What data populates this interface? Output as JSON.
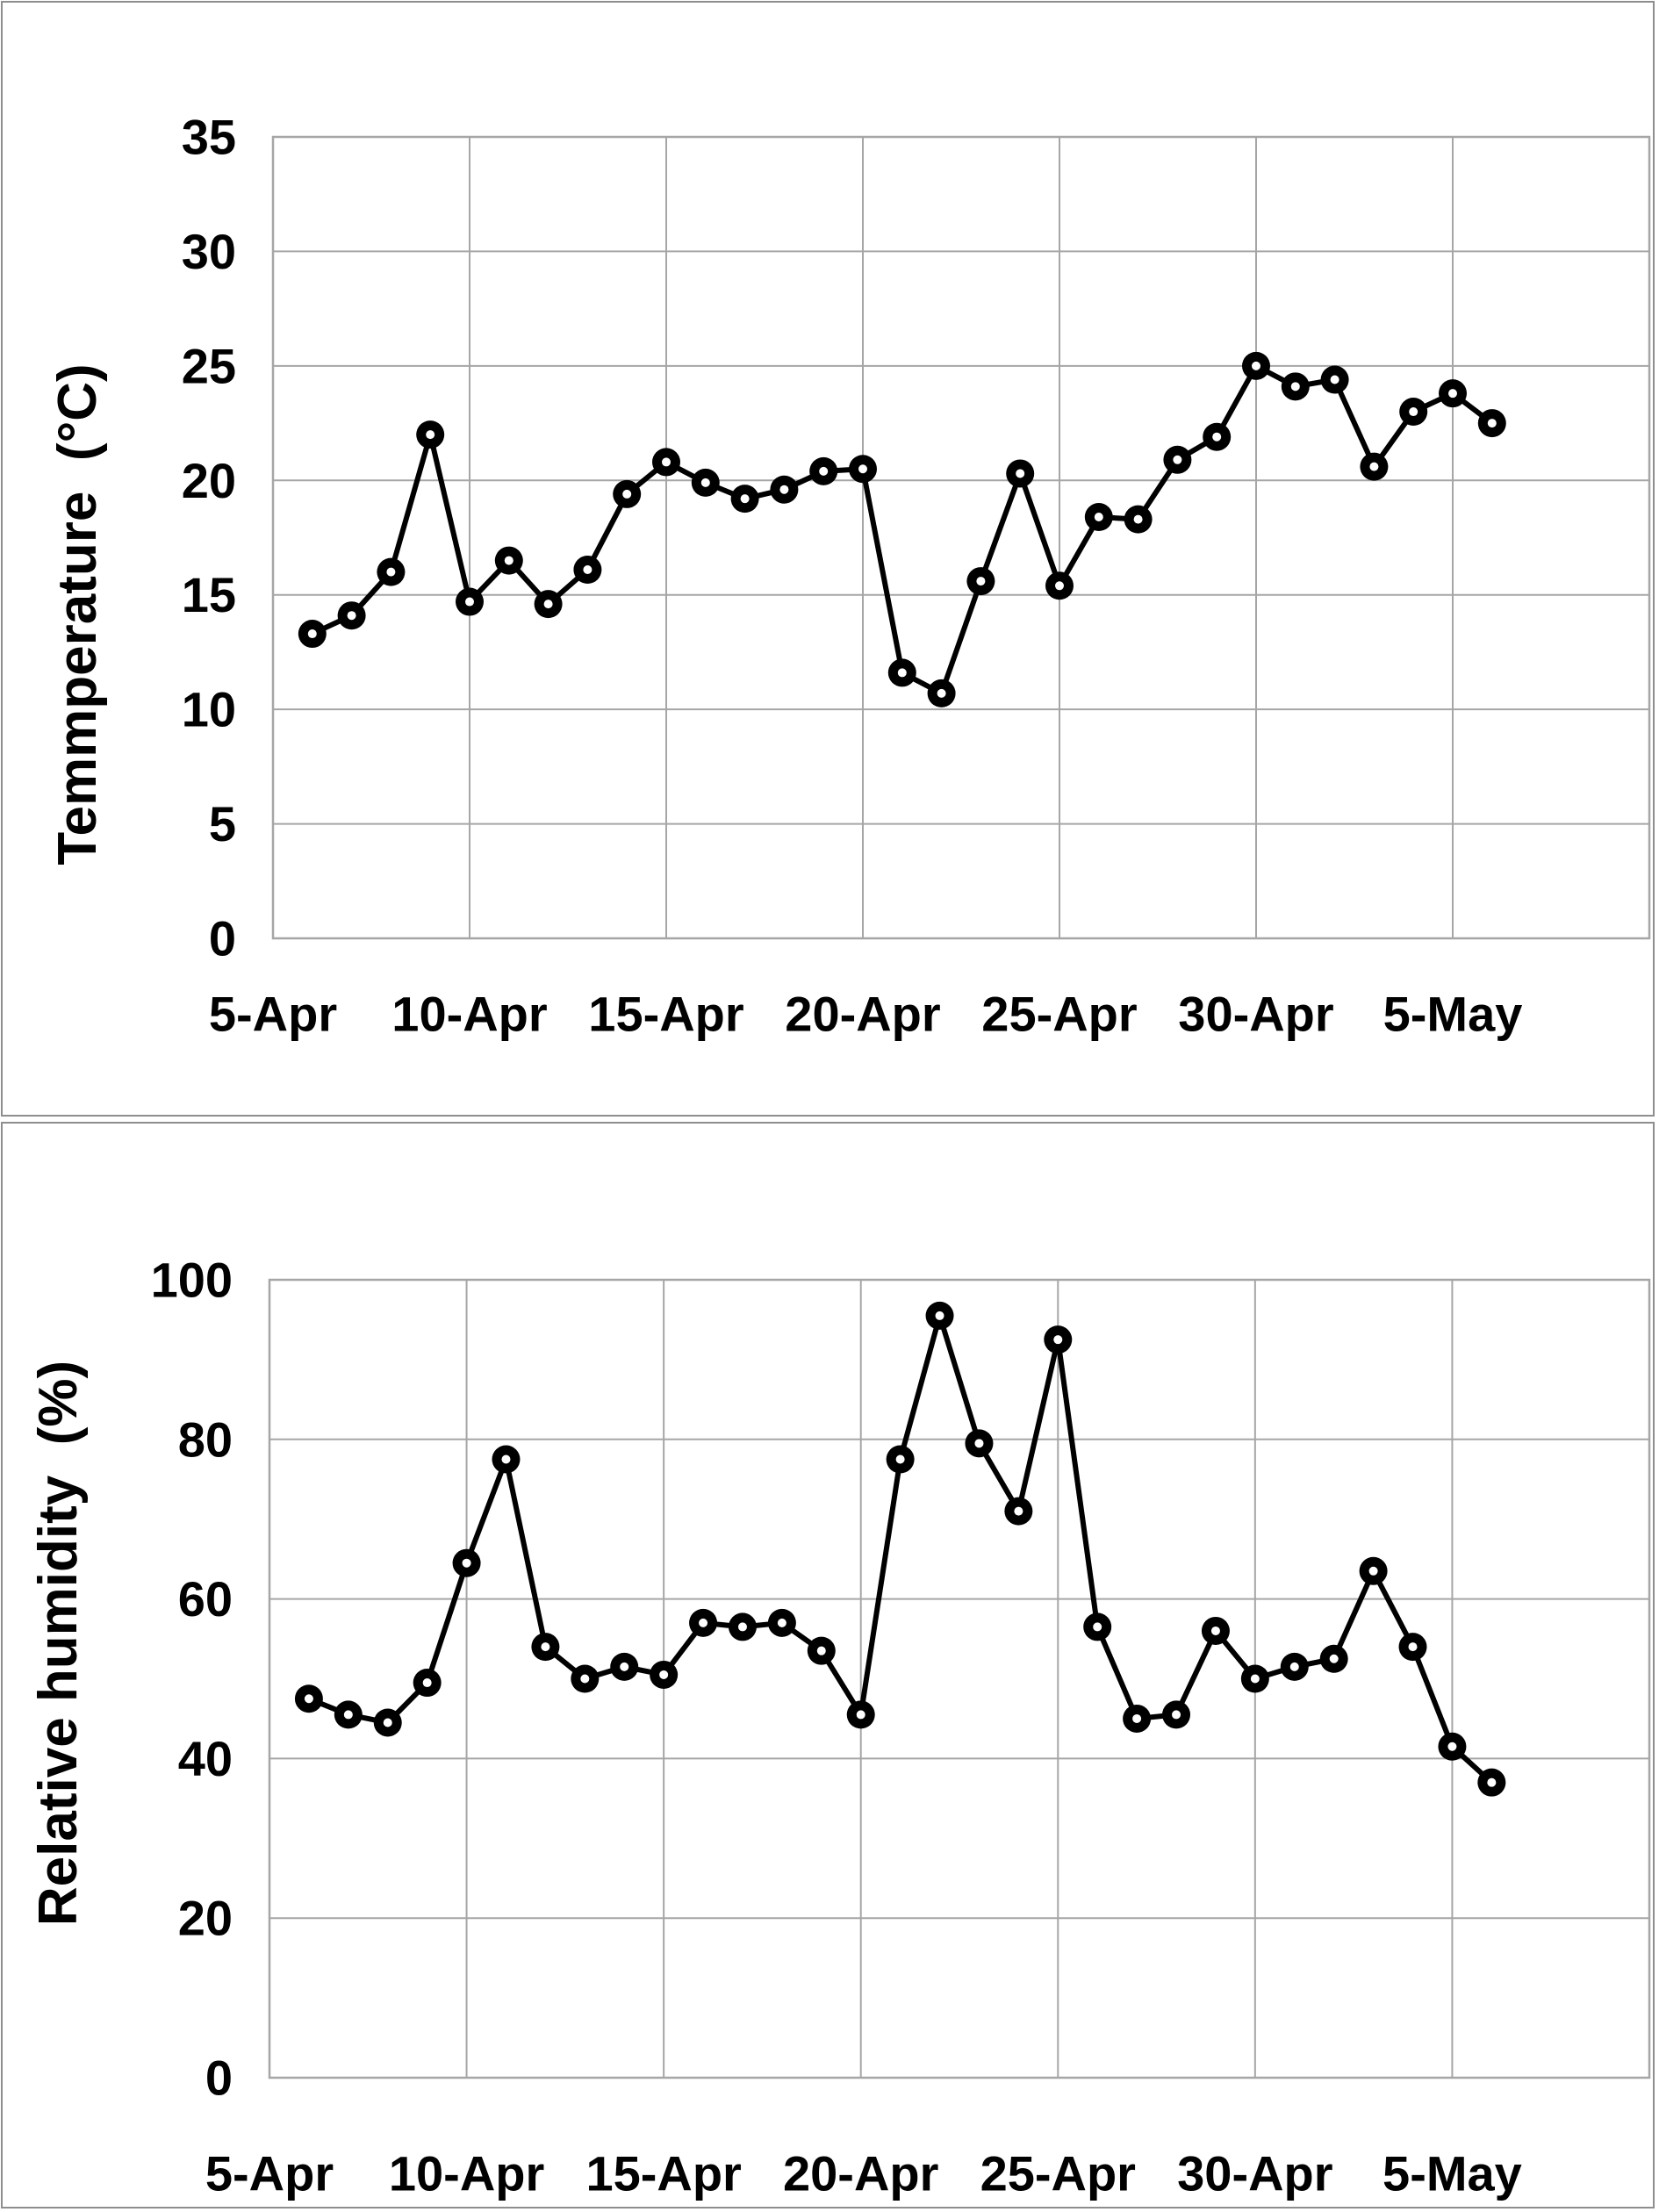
{
  "page": {
    "background_color": "#ffffff",
    "panel_border_color": "#8e8e8e",
    "description_top_panel": "temperature line chart",
    "description_bottom_panel": "relative humidity line chart"
  },
  "chart_data": [
    {
      "type": "line",
      "title": "",
      "xlabel": "",
      "ylabel": "Temmperature  (°C)",
      "legend": "none",
      "grid": true,
      "grid_color": "#a6a6a6",
      "line_color": "#000000",
      "marker": "open-circle",
      "ylim": [
        0,
        35
      ],
      "y_ticks": [
        0,
        5,
        10,
        15,
        20,
        25,
        30,
        35
      ],
      "x_tick_labels": [
        "5-Apr",
        "10-Apr",
        "15-Apr",
        "20-Apr",
        "25-Apr",
        "30-Apr",
        "5-May"
      ],
      "x_tick_days": [
        0,
        5,
        10,
        15,
        20,
        25,
        30
      ],
      "x_domain_days": [
        0,
        35
      ],
      "series": [
        {
          "name": "Temperature (°C)",
          "dates": [
            "6-Apr",
            "7-Apr",
            "8-Apr",
            "9-Apr",
            "10-Apr",
            "11-Apr",
            "12-Apr",
            "13-Apr",
            "14-Apr",
            "15-Apr",
            "16-Apr",
            "17-Apr",
            "18-Apr",
            "19-Apr",
            "20-Apr",
            "21-Apr",
            "22-Apr",
            "23-Apr",
            "24-Apr",
            "25-Apr",
            "26-Apr",
            "27-Apr",
            "28-Apr",
            "29-Apr",
            "30-Apr",
            "1-May",
            "2-May",
            "3-May",
            "4-May",
            "5-May",
            "6-May"
          ],
          "x_days": [
            1,
            2,
            3,
            4,
            5,
            6,
            7,
            8,
            9,
            10,
            11,
            12,
            13,
            14,
            15,
            16,
            17,
            18,
            19,
            20,
            21,
            22,
            23,
            24,
            25,
            26,
            27,
            28,
            29,
            30,
            31
          ],
          "values": [
            13.3,
            14.1,
            16.0,
            22.0,
            14.7,
            16.5,
            14.6,
            16.1,
            19.4,
            20.8,
            19.9,
            19.2,
            19.6,
            20.4,
            20.5,
            11.6,
            10.7,
            15.6,
            20.3,
            15.4,
            18.4,
            18.3,
            20.9,
            21.9,
            25.0,
            24.1,
            24.4,
            20.6,
            23.0,
            23.8,
            22.5
          ]
        }
      ]
    },
    {
      "type": "line",
      "title": "",
      "xlabel": "",
      "ylabel": "Relative humidity  (%)",
      "legend": "none",
      "grid": true,
      "grid_color": "#a6a6a6",
      "line_color": "#000000",
      "marker": "open-circle",
      "ylim": [
        0,
        100
      ],
      "y_ticks": [
        0,
        20,
        40,
        60,
        80,
        100
      ],
      "x_tick_labels": [
        "5-Apr",
        "10-Apr",
        "15-Apr",
        "20-Apr",
        "25-Apr",
        "30-Apr",
        "5-May"
      ],
      "x_tick_days": [
        0,
        5,
        10,
        15,
        20,
        25,
        30
      ],
      "x_domain_days": [
        0,
        35
      ],
      "series": [
        {
          "name": "Relative humidity (%)",
          "dates": [
            "6-Apr",
            "7-Apr",
            "8-Apr",
            "9-Apr",
            "10-Apr",
            "11-Apr",
            "12-Apr",
            "13-Apr",
            "14-Apr",
            "15-Apr",
            "16-Apr",
            "17-Apr",
            "18-Apr",
            "19-Apr",
            "20-Apr",
            "21-Apr",
            "22-Apr",
            "23-Apr",
            "24-Apr",
            "25-Apr",
            "26-Apr",
            "27-Apr",
            "28-Apr",
            "29-Apr",
            "30-Apr",
            "1-May",
            "2-May",
            "3-May",
            "4-May",
            "5-May",
            "6-May"
          ],
          "x_days": [
            1,
            2,
            3,
            4,
            5,
            6,
            7,
            8,
            9,
            10,
            11,
            12,
            13,
            14,
            15,
            16,
            17,
            18,
            19,
            20,
            21,
            22,
            23,
            24,
            25,
            26,
            27,
            28,
            29,
            30,
            31
          ],
          "values": [
            47.5,
            45.5,
            44.5,
            49.5,
            64.5,
            77.5,
            54,
            50,
            51.5,
            50.5,
            57,
            56.5,
            57,
            53.5,
            45.5,
            77.5,
            95.5,
            79.5,
            71,
            92.5,
            56.5,
            45,
            45.5,
            56,
            50,
            51.5,
            52.5,
            63.5,
            54,
            41.5,
            37
          ]
        }
      ]
    }
  ]
}
